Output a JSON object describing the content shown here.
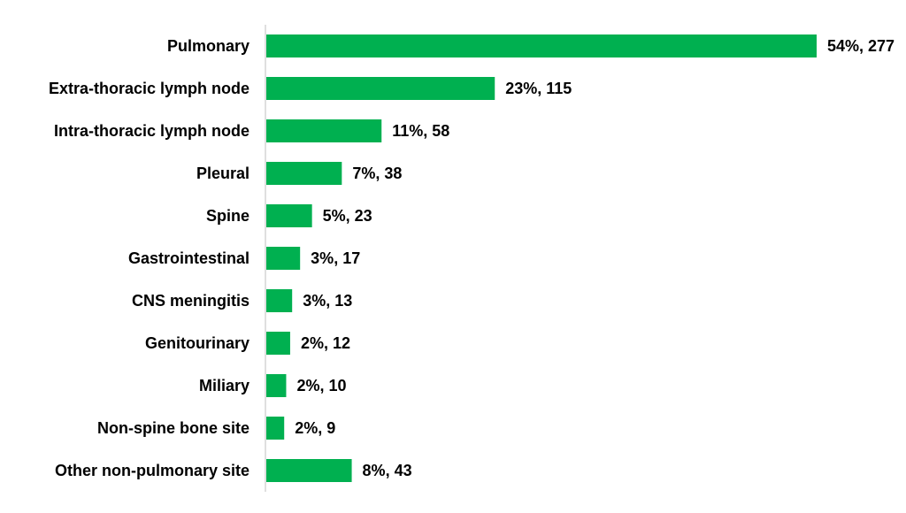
{
  "chart_data": {
    "type": "bar",
    "orientation": "horizontal",
    "title": "",
    "xlabel": "",
    "ylabel": "",
    "categories": [
      "Pulmonary",
      "Extra-thoracic lymph node",
      "Intra-thoracic lymph node",
      "Pleural",
      "Spine",
      "Gastrointestinal",
      "CNS meningitis",
      "Genitourinary",
      "Miliary",
      "Non-spine bone site",
      "Other non-pulmonary site"
    ],
    "values": [
      277,
      115,
      58,
      38,
      23,
      17,
      13,
      12,
      10,
      9,
      43
    ],
    "percents": [
      54,
      23,
      11,
      7,
      5,
      3,
      3,
      2,
      2,
      2,
      8
    ],
    "data_labels": [
      "54%, 277",
      "23%, 115",
      "11%, 58",
      "7%, 38",
      "5%, 23",
      "3%, 17",
      "3%, 13",
      "2%, 12",
      "2%, 10",
      "2%, 9",
      "8%, 43"
    ],
    "bar_color": "#00b050",
    "axis_color": "#bfbfbf",
    "grid": false,
    "legend": "none"
  }
}
